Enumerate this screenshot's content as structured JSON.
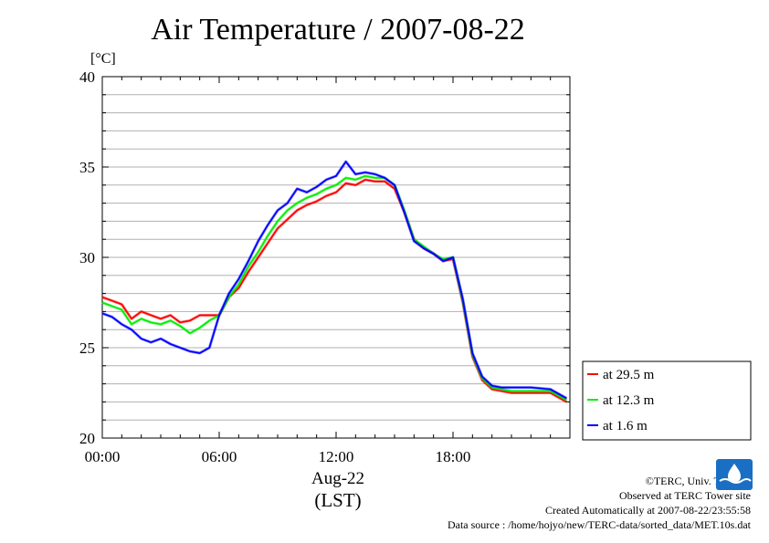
{
  "title": "Air Temperature / 2007-08-22",
  "unit_label": "[°C]",
  "credits": {
    "copyright": "©TERC, Univ. Tsukuba",
    "site": "Observed at TERC Tower site",
    "created": "Created Automatically at 2007-08-22/23:55:58",
    "source": "Data source : /home/hojyo/new/TERC-data/sorted_data/MET.10s.dat"
  },
  "logo_text": "TERC",
  "colors": {
    "red": "#ff0000",
    "green": "#00ee00",
    "blue": "#0000ff",
    "grid": "#b0b0b0"
  },
  "chart_data": {
    "type": "line",
    "title": "Air Temperature / 2007-08-22",
    "ylabel": "[°C]",
    "xlabel": "Aug-22 (LST)",
    "date_label": "Aug-22",
    "timezone_label": "(LST)",
    "xlim": [
      "00:00",
      "24:00"
    ],
    "ylim": [
      20,
      40
    ],
    "x_ticks": [
      "00:00",
      "06:00",
      "12:00",
      "18:00"
    ],
    "y_ticks": [
      20,
      25,
      30,
      35,
      40
    ],
    "grid": true,
    "legend_position": "right",
    "series": [
      {
        "name": "at 29.5 m",
        "color": "#ff0000",
        "x": [
          "00:00",
          "00:30",
          "01:00",
          "01:30",
          "02:00",
          "02:30",
          "03:00",
          "03:30",
          "04:00",
          "04:30",
          "05:00",
          "05:30",
          "06:00",
          "06:30",
          "07:00",
          "07:30",
          "08:00",
          "08:30",
          "09:00",
          "09:30",
          "10:00",
          "10:30",
          "11:00",
          "11:30",
          "12:00",
          "12:30",
          "13:00",
          "13:30",
          "14:00",
          "14:30",
          "15:00",
          "15:30",
          "16:00",
          "16:30",
          "17:00",
          "17:30",
          "18:00",
          "18:30",
          "19:00",
          "19:30",
          "20:00",
          "20:30",
          "21:00",
          "22:00",
          "23:00",
          "23:50"
        ],
        "values": [
          27.8,
          27.6,
          27.4,
          26.6,
          27.0,
          26.8,
          26.6,
          26.8,
          26.4,
          26.5,
          26.8,
          26.8,
          26.8,
          27.8,
          28.3,
          29.2,
          30.0,
          30.8,
          31.6,
          32.1,
          32.6,
          32.9,
          33.1,
          33.4,
          33.6,
          34.1,
          34.0,
          34.3,
          34.2,
          34.2,
          33.8,
          32.5,
          31.0,
          30.5,
          30.2,
          29.8,
          29.9,
          27.5,
          24.5,
          23.2,
          22.7,
          22.6,
          22.5,
          22.5,
          22.5,
          22.0
        ]
      },
      {
        "name": "at 12.3 m",
        "color": "#00ee00",
        "x": [
          "00:00",
          "00:30",
          "01:00",
          "01:30",
          "02:00",
          "02:30",
          "03:00",
          "03:30",
          "04:00",
          "04:30",
          "05:00",
          "05:30",
          "06:00",
          "06:30",
          "07:00",
          "07:30",
          "08:00",
          "08:30",
          "09:00",
          "09:30",
          "10:00",
          "10:30",
          "11:00",
          "11:30",
          "12:00",
          "12:30",
          "13:00",
          "13:30",
          "14:00",
          "14:30",
          "15:00",
          "15:30",
          "16:00",
          "16:30",
          "17:00",
          "17:30",
          "18:00",
          "18:30",
          "19:00",
          "19:30",
          "20:00",
          "20:30",
          "21:00",
          "22:00",
          "23:00",
          "23:50"
        ],
        "values": [
          27.5,
          27.3,
          27.1,
          26.3,
          26.6,
          26.4,
          26.3,
          26.5,
          26.2,
          25.8,
          26.1,
          26.5,
          26.8,
          27.8,
          28.5,
          29.5,
          30.3,
          31.2,
          32.0,
          32.6,
          33.0,
          33.3,
          33.5,
          33.8,
          34.0,
          34.4,
          34.3,
          34.5,
          34.4,
          34.4,
          34.0,
          32.6,
          31.0,
          30.6,
          30.2,
          29.9,
          30.0,
          27.6,
          24.6,
          23.3,
          22.8,
          22.7,
          22.6,
          22.6,
          22.6,
          22.1
        ]
      },
      {
        "name": "at 1.6 m",
        "color": "#0000ff",
        "x": [
          "00:00",
          "00:30",
          "01:00",
          "01:30",
          "02:00",
          "02:30",
          "03:00",
          "03:30",
          "04:00",
          "04:30",
          "05:00",
          "05:30",
          "06:00",
          "06:30",
          "07:00",
          "07:30",
          "08:00",
          "08:30",
          "09:00",
          "09:30",
          "10:00",
          "10:30",
          "11:00",
          "11:30",
          "12:00",
          "12:30",
          "13:00",
          "13:30",
          "14:00",
          "14:30",
          "15:00",
          "15:30",
          "16:00",
          "16:30",
          "17:00",
          "17:30",
          "18:00",
          "18:30",
          "19:00",
          "19:30",
          "20:00",
          "20:30",
          "21:00",
          "22:00",
          "23:00",
          "23:50"
        ],
        "values": [
          26.9,
          26.7,
          26.3,
          26.0,
          25.5,
          25.3,
          25.5,
          25.2,
          25.0,
          24.8,
          24.7,
          25.0,
          26.8,
          28.0,
          28.8,
          29.8,
          30.9,
          31.8,
          32.6,
          33.0,
          33.8,
          33.6,
          33.9,
          34.3,
          34.5,
          35.3,
          34.6,
          34.7,
          34.6,
          34.4,
          34.0,
          32.5,
          30.9,
          30.5,
          30.2,
          29.8,
          30.0,
          27.7,
          24.7,
          23.4,
          22.9,
          22.8,
          22.8,
          22.8,
          22.7,
          22.2
        ]
      }
    ]
  }
}
